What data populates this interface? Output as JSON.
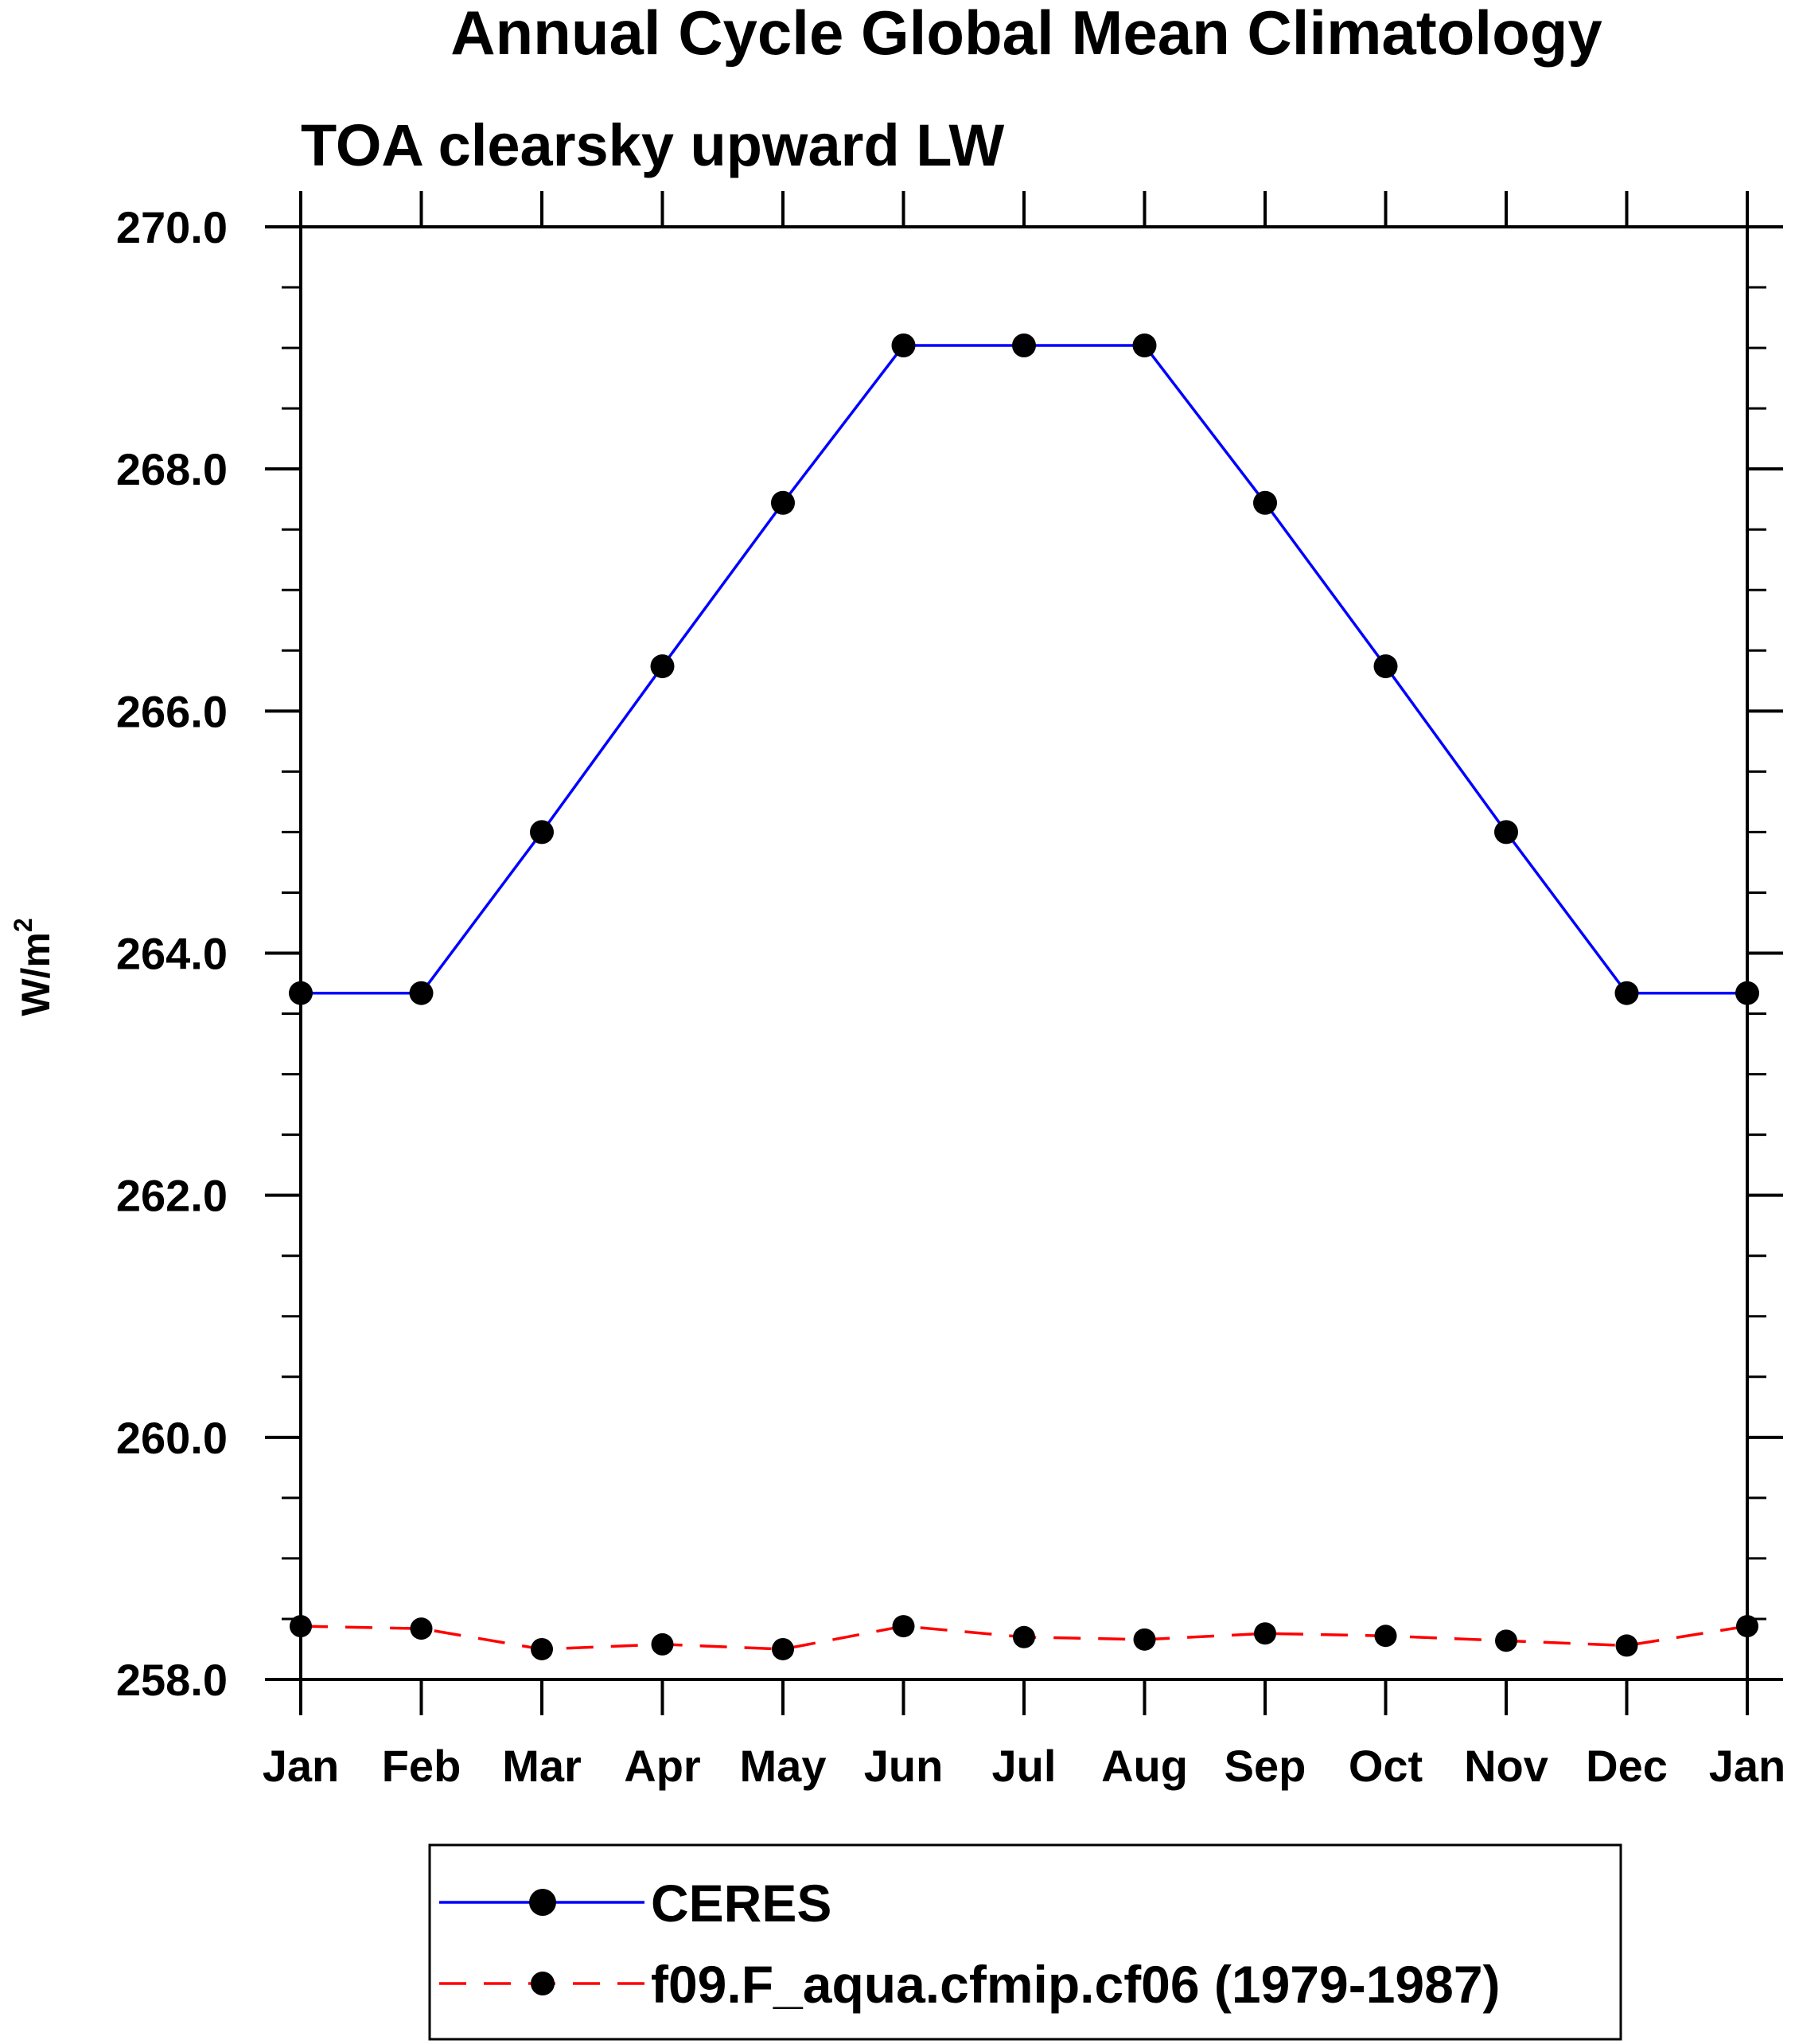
{
  "chart_data": {
    "type": "line",
    "title": "Annual Cycle Global Mean Climatology",
    "subtitle": "TOA clearsky upward LW",
    "xlabel": "",
    "ylabel_base": "W/m",
    "ylabel_sup": "2",
    "categories": [
      "Jan",
      "Feb",
      "Mar",
      "Apr",
      "May",
      "Jun",
      "Jul",
      "Aug",
      "Sep",
      "Oct",
      "Nov",
      "Dec",
      "Jan"
    ],
    "ylim": [
      258.0,
      270.0
    ],
    "y_major_ticks": [
      258.0,
      260.0,
      262.0,
      264.0,
      266.0,
      268.0,
      270.0
    ],
    "y_tick_labels": [
      "258.0",
      "260.0",
      "262.0",
      "264.0",
      "266.0",
      "268.0",
      "270.0"
    ],
    "y_minor_step": 0.5,
    "grid": false,
    "legend_position": "bottom-center",
    "series": [
      {
        "name": "CERES",
        "color": "#0000ff",
        "line_style": "solid",
        "marker": "filled-circle",
        "marker_color": "#000000",
        "values": [
          263.67,
          263.67,
          265.0,
          266.37,
          267.72,
          269.02,
          269.02,
          269.02,
          267.72,
          266.37,
          265.0,
          263.67,
          263.67
        ]
      },
      {
        "name": "f09.F_aqua.cfmip.cf06 (1979-1987)",
        "color": "#ff0000",
        "line_style": "dashed",
        "marker": "filled-circle",
        "marker_color": "#000000",
        "values": [
          258.44,
          258.42,
          258.25,
          258.29,
          258.25,
          258.44,
          258.35,
          258.33,
          258.38,
          258.36,
          258.32,
          258.28,
          258.44
        ]
      }
    ]
  }
}
